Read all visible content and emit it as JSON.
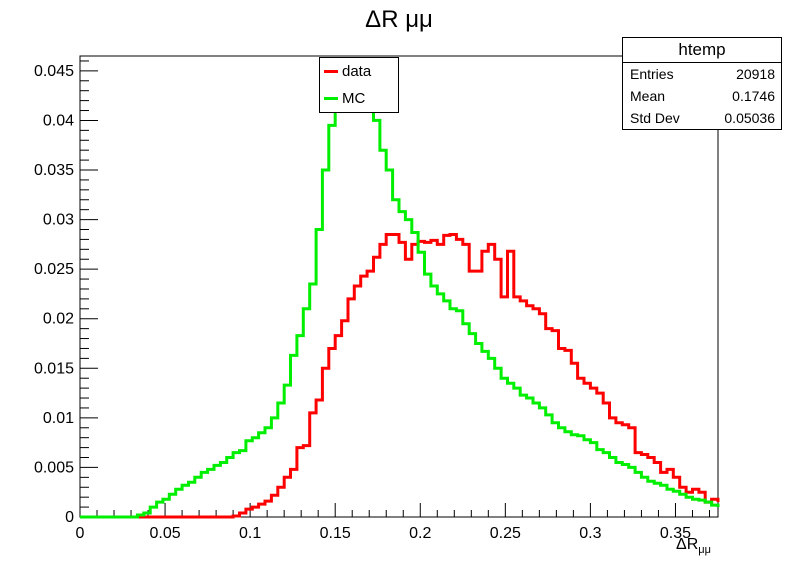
{
  "title": "ΔR μμ",
  "stats": {
    "name": "htemp",
    "rows": [
      {
        "label": "Entries",
        "value": "20918"
      },
      {
        "label": "Mean",
        "value": "0.1746"
      },
      {
        "label": "Std Dev",
        "value": "0.05036"
      }
    ]
  },
  "colors": {
    "data": "#ff0000",
    "mc": "#00ee00"
  },
  "chart_data": {
    "type": "line",
    "title": "ΔR μμ",
    "xlabel": "ΔRμμ",
    "xlabel_main": "ΔR",
    "xlabel_sub": "μμ",
    "ylabel": "",
    "xlim": [
      0,
      0.375
    ],
    "ylim": [
      0,
      0.0465
    ],
    "x_ticks": [
      "0",
      "0.05",
      "0.1",
      "0.15",
      "0.2",
      "0.25",
      "0.3",
      "0.35"
    ],
    "y_ticks": [
      "0",
      "0.005",
      "0.01",
      "0.015",
      "0.02",
      "0.025",
      "0.03",
      "0.035",
      "0.04",
      "0.045"
    ],
    "bin_width": 0.00375,
    "legend_position": "top-center",
    "series": [
      {
        "name": "data",
        "color": "#ff0000",
        "values": [
          0,
          0,
          0,
          0,
          0,
          0,
          0,
          0,
          0,
          0,
          0,
          0,
          0,
          0,
          0,
          0,
          0,
          0,
          0,
          0,
          0,
          0,
          0,
          0,
          0.0001,
          0.0004,
          0.0008,
          0.001,
          0.0013,
          0.0016,
          0.0022,
          0.003,
          0.004,
          0.0048,
          0.007,
          0.0072,
          0.0105,
          0.0118,
          0.015,
          0.017,
          0.0183,
          0.0198,
          0.022,
          0.0233,
          0.0243,
          0.0248,
          0.0262,
          0.0275,
          0.0285,
          0.0285,
          0.0277,
          0.026,
          0.0275,
          0.0278,
          0.0277,
          0.0279,
          0.0275,
          0.0284,
          0.0285,
          0.028,
          0.0275,
          0.0248,
          0.0248,
          0.0268,
          0.0275,
          0.026,
          0.0222,
          0.0268,
          0.0222,
          0.0218,
          0.0213,
          0.021,
          0.0205,
          0.019,
          0.0188,
          0.017,
          0.0168,
          0.0155,
          0.014,
          0.0135,
          0.013,
          0.0125,
          0.0115,
          0.01,
          0.0095,
          0.0093,
          0.009,
          0.0065,
          0.0063,
          0.006,
          0.0055,
          0.0045,
          0.0048,
          0.004,
          0.003,
          0.0025,
          0.0028,
          0.0025,
          0.0015,
          0.0018,
          0.0015,
          0.0012,
          0.001,
          0.0008,
          0.0005,
          0.0005,
          0.0003,
          0,
          0,
          0,
          0,
          0,
          0,
          0,
          0,
          0,
          0,
          0,
          0,
          0,
          0,
          0,
          0,
          0,
          0,
          0,
          0,
          0,
          0,
          0
        ]
      },
      {
        "name": "MC",
        "color": "#00ee00",
        "values": [
          0,
          0,
          0,
          0,
          0,
          0,
          0,
          0,
          0,
          0.0002,
          0.0004,
          0.001,
          0.0015,
          0.0018,
          0.0023,
          0.0028,
          0.0032,
          0.0035,
          0.004,
          0.0045,
          0.0048,
          0.0052,
          0.0055,
          0.006,
          0.0065,
          0.0067,
          0.0077,
          0.008,
          0.0085,
          0.009,
          0.01,
          0.0115,
          0.0133,
          0.0163,
          0.0183,
          0.021,
          0.0235,
          0.029,
          0.035,
          0.0395,
          0.0425,
          0.0448,
          0.0453,
          0.045,
          0.0435,
          0.041,
          0.04,
          0.037,
          0.035,
          0.032,
          0.0308,
          0.03,
          0.0287,
          0.0267,
          0.0245,
          0.0233,
          0.0225,
          0.0218,
          0.021,
          0.0208,
          0.0195,
          0.0185,
          0.0175,
          0.0167,
          0.016,
          0.015,
          0.014,
          0.0135,
          0.013,
          0.0123,
          0.012,
          0.0115,
          0.011,
          0.0103,
          0.0095,
          0.009,
          0.0086,
          0.0083,
          0.0082,
          0.0078,
          0.0075,
          0.0068,
          0.0065,
          0.006,
          0.0055,
          0.0053,
          0.005,
          0.0045,
          0.004,
          0.0036,
          0.0034,
          0.0032,
          0.0028,
          0.0026,
          0.0023,
          0.002,
          0.0018,
          0.0017,
          0.0015,
          0.0012,
          0.001,
          0.0008,
          0.0008,
          0.0007,
          0.0006,
          0.0005,
          0.0005,
          0.0004,
          0.0003,
          0.0003,
          0.0002,
          0.0002,
          0.0002,
          0.0001,
          0.0001,
          0.0001,
          0.0001,
          0.0001,
          0.0001,
          0.0001,
          0.0001,
          0.0001,
          0,
          0,
          0,
          0,
          0,
          0,
          0,
          0,
          0,
          0,
          0,
          0,
          0,
          0,
          0,
          0,
          0,
          0
        ]
      }
    ]
  }
}
